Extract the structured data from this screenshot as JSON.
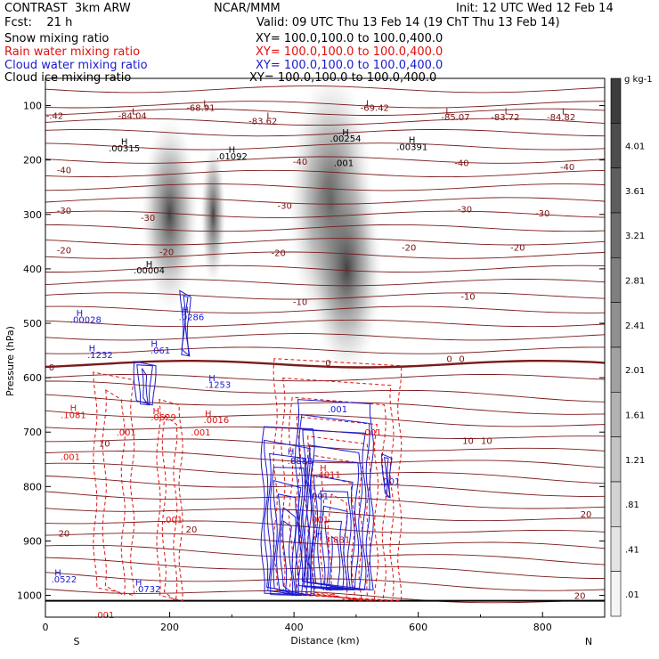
{
  "header": {
    "left_title": "CONTRAST  3km ARW",
    "center_title": "NCAR/MMM",
    "init": "Init: 12 UTC Wed 12 Feb 14",
    "fcst": "Fcst:    21 h",
    "valid": "Valid: 09 UTC Thu 13 Feb 14 (19 ChT Thu 13 Feb 14)"
  },
  "legend": [
    {
      "name": "Snow mixing ratio",
      "color": "#000000",
      "xy": "XY= 100.0,100.0 to 100.0,400.0"
    },
    {
      "name": "Rain water mixing ratio",
      "color": "#e01010",
      "xy": "XY= 100.0,100.0 to 100.0,400.0"
    },
    {
      "name": "Cloud water mixing ratio",
      "color": "#1a1ad0",
      "xy": "XY= 100.0,100.0 to 100.0,400.0"
    },
    {
      "name": "Cloud ice mixing ratio",
      "color": "#000000",
      "xy": "XY= 100.0,100.0 to 100.0,400.0"
    }
  ],
  "chart_data": {
    "type": "heatmap",
    "xlabel": "Distance (km)",
    "ylabel": "Pressure (hPa)",
    "xlim": [
      0,
      900
    ],
    "ylim": [
      1040,
      50
    ],
    "x_ticks": [
      "0",
      "200",
      "400",
      "600",
      "800"
    ],
    "y_ticks": [
      "100",
      "200",
      "300",
      "400",
      "500",
      "600",
      "700",
      "800",
      "900",
      "1000"
    ],
    "x_end_labels": {
      "left": "S",
      "right": "N"
    },
    "colorbar": {
      "unit": "g kg-1",
      "levels": [
        "4.01",
        "3.61",
        "3.21",
        "2.81",
        "2.41",
        "2.01",
        "1.61",
        "1.21",
        ".81",
        ".41",
        ".01"
      ]
    },
    "isotherm_labels": [
      {
        "text": "-84.04",
        "x": 140,
        "y": 118
      },
      {
        "text": "-68.91",
        "x": 250,
        "y": 103
      },
      {
        "text": "-83.62",
        "x": 350,
        "y": 128
      },
      {
        "text": "-69.42",
        "x": 530,
        "y": 103
      },
      {
        "text": "-85.07",
        "x": 660,
        "y": 120
      },
      {
        "text": "-83.72",
        "x": 740,
        "y": 120
      },
      {
        "text": "-84.82",
        "x": 830,
        "y": 120
      },
      {
        "text": "-.42",
        "x": 15,
        "y": 118
      },
      {
        "text": "-40",
        "x": 30,
        "y": 218
      },
      {
        "text": "-40",
        "x": 410,
        "y": 202
      },
      {
        "text": "-40",
        "x": 670,
        "y": 205
      },
      {
        "text": "-40",
        "x": 840,
        "y": 212
      },
      {
        "text": "-30",
        "x": 30,
        "y": 292
      },
      {
        "text": "-30",
        "x": 165,
        "y": 305
      },
      {
        "text": "-30",
        "x": 385,
        "y": 283
      },
      {
        "text": "-30",
        "x": 675,
        "y": 290
      },
      {
        "text": "-30",
        "x": 800,
        "y": 297
      },
      {
        "text": "-20",
        "x": 30,
        "y": 365
      },
      {
        "text": "-20",
        "x": 195,
        "y": 368
      },
      {
        "text": "-20",
        "x": 375,
        "y": 370
      },
      {
        "text": "-20",
        "x": 585,
        "y": 360
      },
      {
        "text": "-20",
        "x": 760,
        "y": 360
      },
      {
        "text": "-10",
        "x": 410,
        "y": 460
      },
      {
        "text": "-10",
        "x": 680,
        "y": 450
      },
      {
        "text": "0",
        "x": 10,
        "y": 580
      },
      {
        "text": "0",
        "x": 455,
        "y": 572
      },
      {
        "text": "0",
        "x": 650,
        "y": 565
      },
      {
        "text": "0",
        "x": 670,
        "y": 565
      },
      {
        "text": "10",
        "x": 95,
        "y": 720
      },
      {
        "text": "10",
        "x": 680,
        "y": 715
      },
      {
        "text": "10",
        "x": 710,
        "y": 715
      },
      {
        "text": "20",
        "x": 30,
        "y": 885
      },
      {
        "text": "20",
        "x": 235,
        "y": 878
      },
      {
        "text": "20",
        "x": 870,
        "y": 850
      },
      {
        "text": "20",
        "x": 860,
        "y": 1000
      }
    ],
    "hl_labels": [
      {
        "text": "L",
        "x": 143,
        "y": 110,
        "color": "#7a1010"
      },
      {
        "text": "L",
        "x": 258,
        "y": 95,
        "color": "#7a1010"
      },
      {
        "text": "L",
        "x": 360,
        "y": 118,
        "color": "#7a1010"
      },
      {
        "text": "L",
        "x": 520,
        "y": 95,
        "color": "#7a1010"
      },
      {
        "text": "L",
        "x": 648,
        "y": 110,
        "color": "#7a1010"
      },
      {
        "text": "L",
        "x": 743,
        "y": 110,
        "color": "#7a1010"
      },
      {
        "text": "L",
        "x": 835,
        "y": 110,
        "color": "#7a1010"
      },
      {
        "text": "H",
        "x": 127,
        "y": 165,
        "color": "#000000"
      },
      {
        "text": "H",
        "x": 300,
        "y": 180,
        "color": "#000000"
      },
      {
        "text": "H",
        "x": 483,
        "y": 148,
        "color": "#000000"
      },
      {
        "text": "H",
        "x": 590,
        "y": 162,
        "color": "#000000"
      },
      {
        "text": "H",
        "x": 167,
        "y": 390,
        "color": "#000000"
      },
      {
        "text": "H",
        "x": 55,
        "y": 480,
        "color": "#1a1ad0"
      },
      {
        "text": "H",
        "x": 225,
        "y": 475,
        "color": "#1a1ad0"
      },
      {
        "text": "H",
        "x": 75,
        "y": 545,
        "color": "#1a1ad0"
      },
      {
        "text": "H",
        "x": 175,
        "y": 537,
        "color": "#1a1ad0"
      },
      {
        "text": "H",
        "x": 268,
        "y": 600,
        "color": "#1a1ad0"
      },
      {
        "text": "H",
        "x": 45,
        "y": 655,
        "color": "#e01010"
      },
      {
        "text": "H",
        "x": 178,
        "y": 660,
        "color": "#e01010"
      },
      {
        "text": "H",
        "x": 262,
        "y": 665,
        "color": "#e01010"
      },
      {
        "text": "H",
        "x": 395,
        "y": 735,
        "color": "#1a1ad0"
      },
      {
        "text": "H",
        "x": 447,
        "y": 765,
        "color": "#e01010"
      },
      {
        "text": "H",
        "x": 440,
        "y": 887,
        "color": "#1a1ad0"
      },
      {
        "text": "H",
        "x": 20,
        "y": 957,
        "color": "#1a1ad0"
      },
      {
        "text": "H",
        "x": 150,
        "y": 975,
        "color": "#1a1ad0"
      }
    ],
    "value_labels": [
      {
        "text": ".00315",
        "x": 127,
        "y": 178,
        "color": "#000000"
      },
      {
        "text": ".01092",
        "x": 300,
        "y": 192,
        "color": "#000000"
      },
      {
        "text": ".00254",
        "x": 483,
        "y": 160,
        "color": "#000000"
      },
      {
        "text": ".00391",
        "x": 590,
        "y": 175,
        "color": "#000000"
      },
      {
        "text": ".001",
        "x": 480,
        "y": 205,
        "color": "#000000"
      },
      {
        "text": ".00004",
        "x": 167,
        "y": 402,
        "color": "#000000"
      },
      {
        "text": ".00028",
        "x": 65,
        "y": 493,
        "color": "#1a1ad0"
      },
      {
        "text": ".0286",
        "x": 235,
        "y": 488,
        "color": "#1a1ad0"
      },
      {
        "text": ".1232",
        "x": 88,
        "y": 557,
        "color": "#1a1ad0"
      },
      {
        "text": ".061",
        "x": 185,
        "y": 549,
        "color": "#1a1ad0"
      },
      {
        "text": ".1253",
        "x": 278,
        "y": 612,
        "color": "#1a1ad0"
      },
      {
        "text": ".1081",
        "x": 45,
        "y": 668,
        "color": "#e01010"
      },
      {
        "text": ".0629",
        "x": 190,
        "y": 672,
        "color": "#e01010"
      },
      {
        "text": ".0016",
        "x": 275,
        "y": 677,
        "color": "#e01010"
      },
      {
        "text": ".001",
        "x": 130,
        "y": 700,
        "color": "#e01010"
      },
      {
        "text": ".001",
        "x": 250,
        "y": 700,
        "color": "#e01010"
      },
      {
        "text": ".001",
        "x": 40,
        "y": 745,
        "color": "#e01010"
      },
      {
        "text": ".001",
        "x": 525,
        "y": 700,
        "color": "#e01010"
      },
      {
        "text": ".001",
        "x": 470,
        "y": 657,
        "color": "#1a1ad0"
      },
      {
        "text": ".8888",
        "x": 410,
        "y": 752,
        "color": "#1a1ad0"
      },
      {
        "text": ".4011",
        "x": 455,
        "y": 777,
        "color": "#e01010"
      },
      {
        "text": ".001",
        "x": 440,
        "y": 817,
        "color": "#1a1ad0"
      },
      {
        "text": ".001",
        "x": 440,
        "y": 860,
        "color": "#e01010"
      },
      {
        "text": ".001",
        "x": 205,
        "y": 860,
        "color": "#e01010"
      },
      {
        "text": ".001",
        "x": 555,
        "y": 790,
        "color": "#1a1ad0"
      },
      {
        "text": "3.881",
        "x": 470,
        "y": 897,
        "color": "#e01010"
      },
      {
        "text": ".0522",
        "x": 30,
        "y": 970,
        "color": "#1a1ad0"
      },
      {
        "text": ".0732",
        "x": 165,
        "y": 988,
        "color": "#1a1ad0"
      },
      {
        "text": ".001",
        "x": 95,
        "y": 1035,
        "color": "#e01010"
      }
    ]
  }
}
